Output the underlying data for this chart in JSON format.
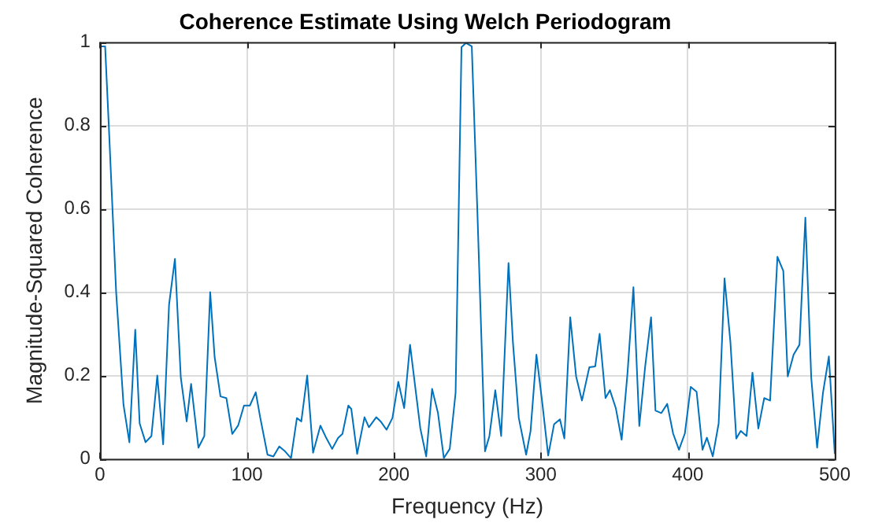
{
  "chart_data": {
    "type": "line",
    "title": "Coherence Estimate Using Welch Periodogram",
    "xlabel": "Frequency (Hz)",
    "ylabel": "Magnitude-Squared Coherence",
    "xlim": [
      0,
      500
    ],
    "xticks": [
      0,
      100,
      200,
      300,
      400,
      500
    ],
    "ylim": [
      0,
      1
    ],
    "yticks": [
      0,
      0.2,
      0.4,
      0.6,
      0.8,
      1
    ],
    "grid": true,
    "marker": "none",
    "line_style": "solid",
    "series": [
      {
        "color": "#0072bd",
        "x": [
          0,
          3.5,
          6,
          11,
          16,
          20,
          24,
          27,
          31,
          35,
          39,
          43,
          47,
          51,
          55,
          59,
          62,
          67,
          71,
          75,
          78,
          82,
          86,
          90,
          94,
          98,
          102,
          106,
          109,
          114,
          118,
          122,
          126,
          130,
          134,
          137,
          141,
          145,
          150,
          154,
          158,
          162,
          165,
          169,
          171,
          175,
          180,
          183,
          188,
          191,
          195,
          199,
          203,
          207,
          211,
          215,
          218,
          222,
          226,
          230,
          234,
          238,
          242,
          246,
          249,
          253,
          257,
          262,
          265,
          269,
          273,
          278,
          281,
          285,
          290,
          293,
          297,
          301,
          305,
          309,
          313,
          316,
          320,
          324,
          328,
          333,
          337,
          340,
          344,
          347,
          351,
          355,
          359,
          363,
          367,
          371,
          375,
          378,
          382,
          386,
          390,
          394,
          398,
          402,
          406,
          410,
          413,
          417,
          421,
          425,
          429,
          433,
          436,
          440,
          444,
          448,
          452,
          456,
          461,
          465,
          468,
          472,
          476,
          480,
          484,
          488,
          492,
          496,
          500
        ],
        "values": [
          0.99,
          0.99,
          0.8,
          0.4,
          0.13,
          0.04,
          0.31,
          0.085,
          0.04,
          0.055,
          0.2,
          0.035,
          0.37,
          0.48,
          0.195,
          0.09,
          0.18,
          0.027,
          0.055,
          0.4,
          0.245,
          0.15,
          0.146,
          0.06,
          0.08,
          0.128,
          0.128,
          0.16,
          0.1,
          0.01,
          0.006,
          0.03,
          0.018,
          0.002,
          0.098,
          0.09,
          0.2,
          0.015,
          0.08,
          0.05,
          0.024,
          0.05,
          0.06,
          0.128,
          0.12,
          0.012,
          0.1,
          0.076,
          0.1,
          0.09,
          0.07,
          0.098,
          0.185,
          0.122,
          0.274,
          0.159,
          0.073,
          0.006,
          0.168,
          0.11,
          0.002,
          0.024,
          0.159,
          0.988,
          0.998,
          0.99,
          0.573,
          0.018,
          0.055,
          0.165,
          0.055,
          0.47,
          0.28,
          0.098,
          0.01,
          0.067,
          0.25,
          0.134,
          0.008,
          0.083,
          0.095,
          0.049,
          0.34,
          0.198,
          0.14,
          0.22,
          0.222,
          0.3,
          0.146,
          0.165,
          0.122,
          0.046,
          0.207,
          0.412,
          0.079,
          0.222,
          0.34,
          0.116,
          0.11,
          0.132,
          0.061,
          0.022,
          0.061,
          0.173,
          0.161,
          0.022,
          0.051,
          0.006,
          0.085,
          0.433,
          0.28,
          0.049,
          0.067,
          0.055,
          0.207,
          0.073,
          0.146,
          0.14,
          0.485,
          0.451,
          0.198,
          0.25,
          0.274,
          0.579,
          0.195,
          0.027,
          0.159,
          0.246,
          0.012
        ]
      }
    ]
  }
}
